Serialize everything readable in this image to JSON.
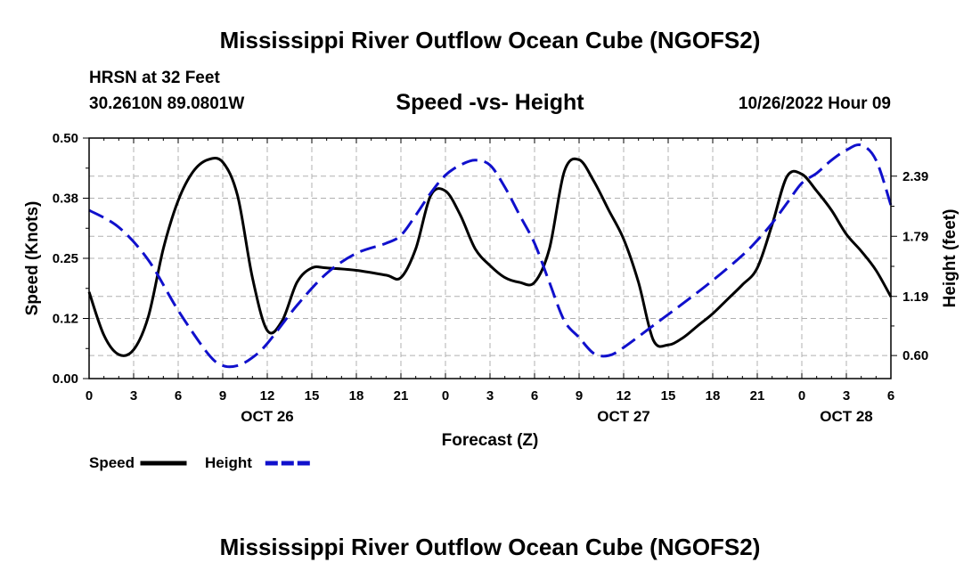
{
  "page": {
    "title": "Mississippi River Outflow Ocean Cube (NGOFS2)",
    "bottom_title": "Mississippi River Outflow Ocean Cube (NGOFS2)",
    "station_line": "HRSN at 32 Feet",
    "coords_line": "30.2610N  89.0801W",
    "datetime": "10/26/2022 Hour 09"
  },
  "chart_data": {
    "type": "line",
    "title": "Speed -vs- Height",
    "xlabel": "Forecast (Z)",
    "ylabel": "Speed (Knots)",
    "y2label": "Height (feet)",
    "x_range_hours": [
      0,
      54
    ],
    "ylim": [
      0,
      0.5
    ],
    "y2lim": [
      0.37,
      2.77
    ],
    "x_ticks": [
      {
        "h": 0,
        "label": "0"
      },
      {
        "h": 3,
        "label": "3"
      },
      {
        "h": 6,
        "label": "6"
      },
      {
        "h": 9,
        "label": "9"
      },
      {
        "h": 12,
        "label": "12"
      },
      {
        "h": 15,
        "label": "15"
      },
      {
        "h": 18,
        "label": "18"
      },
      {
        "h": 21,
        "label": "21"
      },
      {
        "h": 24,
        "label": "0"
      },
      {
        "h": 27,
        "label": "3"
      },
      {
        "h": 30,
        "label": "6"
      },
      {
        "h": 33,
        "label": "9"
      },
      {
        "h": 36,
        "label": "12"
      },
      {
        "h": 39,
        "label": "15"
      },
      {
        "h": 42,
        "label": "18"
      },
      {
        "h": 45,
        "label": "21"
      },
      {
        "h": 48,
        "label": "0"
      },
      {
        "h": 51,
        "label": "3"
      },
      {
        "h": 54,
        "label": "6"
      }
    ],
    "date_labels": [
      {
        "h": 12,
        "label": "OCT 26"
      },
      {
        "h": 36,
        "label": "OCT 27"
      },
      {
        "h": 51,
        "label": "OCT 28"
      }
    ],
    "y_ticks": [
      {
        "v": 0.0,
        "label": "0.00"
      },
      {
        "v": 0.125,
        "label": "0.12"
      },
      {
        "v": 0.25,
        "label": "0.25"
      },
      {
        "v": 0.375,
        "label": "0.38"
      },
      {
        "v": 0.5,
        "label": "0.50"
      }
    ],
    "y2_ticks": [
      {
        "v": 0.6,
        "label": "0.60"
      },
      {
        "v": 1.19,
        "label": "1.19"
      },
      {
        "v": 1.79,
        "label": "1.79"
      },
      {
        "v": 2.39,
        "label": "2.39"
      }
    ],
    "legend": [
      {
        "name": "Speed",
        "color": "#000000",
        "dash": "solid"
      },
      {
        "name": "Height",
        "color": "#1010cc",
        "dash": "dashed"
      }
    ],
    "series": [
      {
        "name": "Speed",
        "axis": "left",
        "color": "#000000",
        "points": [
          [
            0,
            0.18
          ],
          [
            1,
            0.09
          ],
          [
            2,
            0.05
          ],
          [
            3,
            0.06
          ],
          [
            4,
            0.13
          ],
          [
            5,
            0.27
          ],
          [
            6,
            0.37
          ],
          [
            7,
            0.43
          ],
          [
            8,
            0.455
          ],
          [
            9,
            0.45
          ],
          [
            10,
            0.38
          ],
          [
            11,
            0.21
          ],
          [
            12,
            0.1
          ],
          [
            13,
            0.12
          ],
          [
            14,
            0.2
          ],
          [
            15,
            0.23
          ],
          [
            16,
            0.23
          ],
          [
            18,
            0.225
          ],
          [
            20,
            0.215
          ],
          [
            21,
            0.21
          ],
          [
            22,
            0.27
          ],
          [
            23,
            0.38
          ],
          [
            24,
            0.39
          ],
          [
            25,
            0.34
          ],
          [
            26,
            0.27
          ],
          [
            27,
            0.235
          ],
          [
            28,
            0.21
          ],
          [
            29,
            0.2
          ],
          [
            30,
            0.2
          ],
          [
            31,
            0.27
          ],
          [
            32,
            0.43
          ],
          [
            33,
            0.455
          ],
          [
            34,
            0.41
          ],
          [
            35,
            0.35
          ],
          [
            36,
            0.29
          ],
          [
            37,
            0.2
          ],
          [
            38,
            0.08
          ],
          [
            39,
            0.07
          ],
          [
            40,
            0.085
          ],
          [
            41,
            0.11
          ],
          [
            42,
            0.135
          ],
          [
            43,
            0.165
          ],
          [
            44,
            0.195
          ],
          [
            45,
            0.23
          ],
          [
            46,
            0.32
          ],
          [
            47,
            0.42
          ],
          [
            48,
            0.425
          ],
          [
            49,
            0.39
          ],
          [
            50,
            0.35
          ],
          [
            51,
            0.3
          ],
          [
            52,
            0.265
          ],
          [
            53,
            0.225
          ],
          [
            54,
            0.17
          ]
        ]
      },
      {
        "name": "Height",
        "axis": "right",
        "color": "#1010cc",
        "points": [
          [
            0,
            2.05
          ],
          [
            2,
            1.88
          ],
          [
            4,
            1.55
          ],
          [
            6,
            1.05
          ],
          [
            8,
            0.62
          ],
          [
            9,
            0.5
          ],
          [
            10,
            0.5
          ],
          [
            11,
            0.58
          ],
          [
            12,
            0.72
          ],
          [
            14,
            1.1
          ],
          [
            16,
            1.42
          ],
          [
            18,
            1.62
          ],
          [
            20,
            1.72
          ],
          [
            21,
            1.8
          ],
          [
            22,
            2.0
          ],
          [
            23,
            2.22
          ],
          [
            24,
            2.4
          ],
          [
            25,
            2.5
          ],
          [
            26,
            2.55
          ],
          [
            27,
            2.5
          ],
          [
            28,
            2.28
          ],
          [
            29,
            2.0
          ],
          [
            30,
            1.72
          ],
          [
            31,
            1.33
          ],
          [
            32,
            0.95
          ],
          [
            33,
            0.78
          ],
          [
            34,
            0.62
          ],
          [
            35,
            0.6
          ],
          [
            36,
            0.68
          ],
          [
            38,
            0.9
          ],
          [
            40,
            1.12
          ],
          [
            42,
            1.35
          ],
          [
            44,
            1.6
          ],
          [
            45,
            1.75
          ],
          [
            46,
            1.92
          ],
          [
            47,
            2.12
          ],
          [
            48,
            2.32
          ],
          [
            49,
            2.42
          ],
          [
            50,
            2.55
          ],
          [
            51,
            2.65
          ],
          [
            52,
            2.7
          ],
          [
            53,
            2.55
          ],
          [
            54,
            2.1
          ]
        ]
      }
    ]
  }
}
